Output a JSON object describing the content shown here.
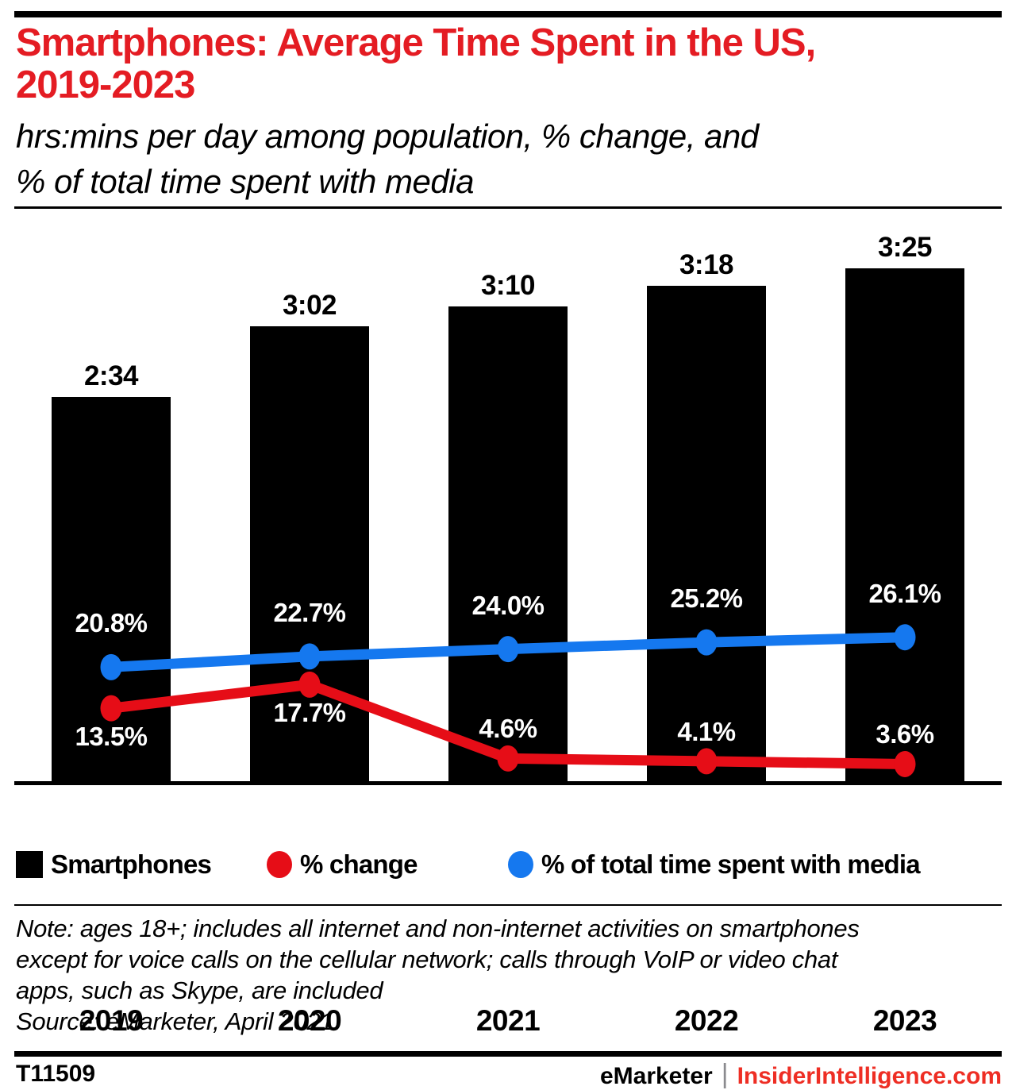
{
  "header": {
    "title_line1": "Smartphones: Average Time Spent in the US,",
    "title_line2": "2019-2023",
    "subtitle_line1": "hrs:mins per day among population, % change, and",
    "subtitle_line2": "% of total time spent with media"
  },
  "chart_data": {
    "type": "combo",
    "subtypes": [
      "bar",
      "line",
      "line"
    ],
    "categories": [
      "2019",
      "2020",
      "2021",
      "2022",
      "2023"
    ],
    "series": [
      {
        "name": "Smartphones",
        "type": "bar",
        "unit": "hrs:mins per day",
        "labels": [
          "2:34",
          "3:02",
          "3:10",
          "3:18",
          "3:25"
        ],
        "values_minutes": [
          154,
          182,
          190,
          198,
          205
        ],
        "color": "#000000"
      },
      {
        "name": "% change",
        "type": "line",
        "unit": "%",
        "labels": [
          "13.5%",
          "17.7%",
          "4.6%",
          "4.1%",
          "3.6%"
        ],
        "values": [
          13.5,
          17.7,
          4.6,
          4.1,
          3.6
        ],
        "color": "#e60d17"
      },
      {
        "name": "% of total time spent with media",
        "type": "line",
        "unit": "%",
        "labels": [
          "20.8%",
          "22.7%",
          "24.0%",
          "25.2%",
          "26.1%"
        ],
        "values": [
          20.8,
          22.7,
          24.0,
          25.2,
          26.1
        ],
        "color": "#1578ef"
      }
    ],
    "title": "Smartphones: Average Time Spent in the US, 2019-2023",
    "xlabel": "",
    "ylabel": "",
    "bar_axis": {
      "min": 0,
      "unit": "minutes",
      "axis_labels_visible": false
    },
    "grid": false,
    "legend_position": "bottom"
  },
  "note": {
    "lines": [
      "Note: ages 18+; includes all internet and non-internet activities on smartphones",
      "except for voice calls on the cellular network; calls through VoIP or video chat",
      "apps, such as Skype, are included"
    ],
    "source": "Source: eMarketer, April 2021"
  },
  "footer": {
    "figure_id": "T11509",
    "brand": "eMarketer",
    "separator": "|",
    "site": "InsiderIntelligence.com"
  },
  "colors": {
    "title_red": "#e41c23",
    "line_red": "#e60d17",
    "line_blue": "#1578ef",
    "footer_site_red": "#ee2e24",
    "bar_black": "#000000",
    "separator_gray": "#8b8b8f",
    "label_white": "#ffffff"
  }
}
